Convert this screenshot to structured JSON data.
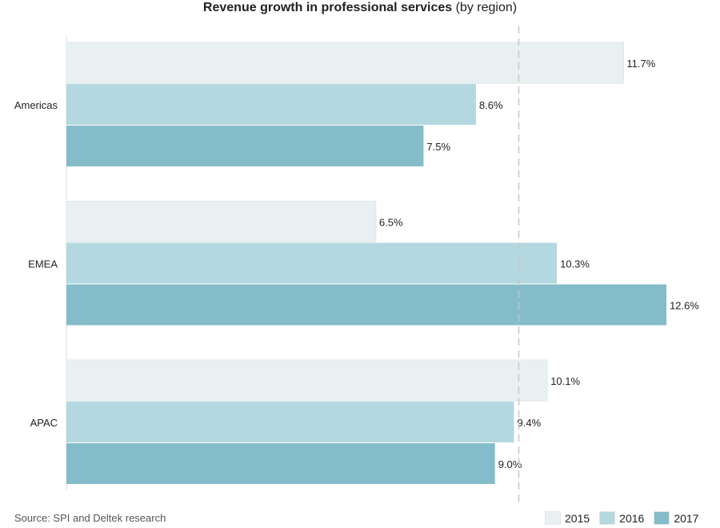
{
  "title_bold": "Revenue growth in professional services",
  "title_rest": "(by region)",
  "source": "Source: SPI and Deltek research",
  "colors": {
    "2015": "#e8f0f2",
    "2016": "#b4d8df",
    "2017": "#84bcc9"
  },
  "chart_data": {
    "type": "bar",
    "orientation": "horizontal",
    "title": "Revenue growth in professional services (by region)",
    "categories": [
      "Americas",
      "EMEA",
      "APAC"
    ],
    "series": [
      {
        "name": "2015",
        "values": [
          11.7,
          6.5,
          10.1
        ],
        "labels": [
          "11.7%",
          "6.5%",
          "10.1%"
        ]
      },
      {
        "name": "2016",
        "values": [
          8.6,
          10.3,
          9.4
        ],
        "labels": [
          "8.6%",
          "10.3%",
          "9.4%"
        ]
      },
      {
        "name": "2017",
        "values": [
          7.5,
          12.6,
          9.0
        ],
        "labels": [
          "7.5%",
          "12.6%",
          "9.0%"
        ]
      }
    ],
    "xlim": [
      0,
      12.6
    ],
    "reference_line": 9.5,
    "legend_position": "bottom-right",
    "grid": false
  }
}
